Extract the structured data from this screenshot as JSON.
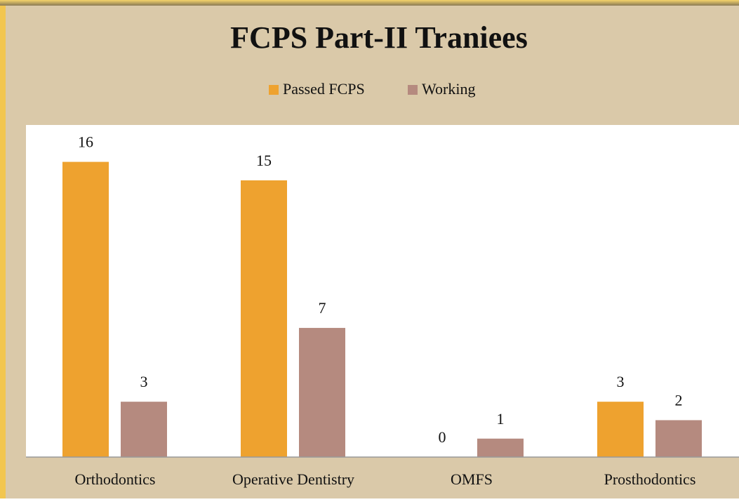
{
  "chart_data": {
    "type": "bar",
    "title": "FCPS Part-II Traniees",
    "categories": [
      "Orthodontics",
      "Operative Dentistry",
      "OMFS",
      "Prosthodontics"
    ],
    "series": [
      {
        "name": "Passed FCPS",
        "color": "#eea22f",
        "values": [
          16,
          15,
          0,
          3
        ]
      },
      {
        "name": "Working",
        "color": "#b58a7f",
        "values": [
          3,
          7,
          1,
          2
        ]
      }
    ],
    "ylim": [
      0,
      18
    ],
    "legend": "top"
  }
}
